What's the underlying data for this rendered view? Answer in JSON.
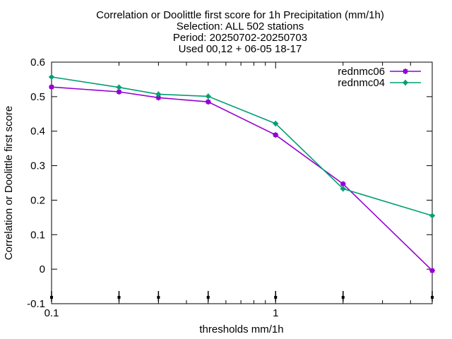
{
  "title_lines": [
    "Correlation or Doolittle first score  for 1h Precipitation (mm/1h)",
    "Selection: ALL    502 stations",
    "Period: 20250702-20250703",
    "Used 00,12 + 06-05 18-17"
  ],
  "chart_data": {
    "type": "line",
    "title": "Correlation or Doolittle first score  for 1h Precipitation (mm/1h)",
    "subtitle": [
      "Selection: ALL    502 stations",
      "Period: 20250702-20250703",
      "Used 00,12 + 06-05 18-17"
    ],
    "xlabel": "thresholds mm/1h",
    "ylabel": "Correlation or Doolittle first score",
    "xscale": "log",
    "xlim": [
      0.1,
      5
    ],
    "ylim": [
      -0.1,
      0.6
    ],
    "xticks": [
      {
        "value": 0.1,
        "label": "0.1"
      },
      {
        "value": 1,
        "label": "1"
      }
    ],
    "yticks": [
      {
        "value": -0.1,
        "label": "-0.1"
      },
      {
        "value": 0,
        "label": "0"
      },
      {
        "value": 0.1,
        "label": "0.1"
      },
      {
        "value": 0.2,
        "label": "0.2"
      },
      {
        "value": 0.3,
        "label": "0.3"
      },
      {
        "value": 0.4,
        "label": "0.4"
      },
      {
        "value": 0.5,
        "label": "0.5"
      },
      {
        "value": 0.6,
        "label": "0.6"
      }
    ],
    "grid": false,
    "legend_position": "top-right",
    "threshold_markers": [
      0.1,
      0.2,
      0.3,
      0.5,
      1,
      2,
      5
    ],
    "series": [
      {
        "name": "rednmc06",
        "color": "#9400d3",
        "marker": "square",
        "x": [
          0.1,
          0.2,
          0.3,
          0.5,
          1,
          2,
          5
        ],
        "y": [
          0.528,
          0.514,
          0.497,
          0.485,
          0.389,
          0.247,
          -0.004
        ]
      },
      {
        "name": "rednmc04",
        "color": "#009e73",
        "marker": "circle",
        "x": [
          0.1,
          0.2,
          0.3,
          0.5,
          1,
          2,
          5
        ],
        "y": [
          0.557,
          0.527,
          0.507,
          0.501,
          0.422,
          0.233,
          0.155
        ]
      }
    ]
  }
}
